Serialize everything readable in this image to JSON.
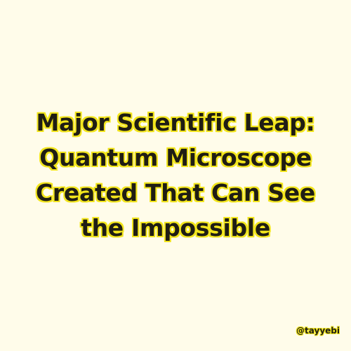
{
  "headline": {
    "lines": [
      "Major Scientific Leap:",
      "Quantum Microscope",
      "Created That Can See",
      "the Impossible"
    ]
  },
  "handle": "@tayyebi",
  "colors": {
    "background": "#fffcea",
    "text": "#1f1d14",
    "outline": "#f2e51c"
  }
}
